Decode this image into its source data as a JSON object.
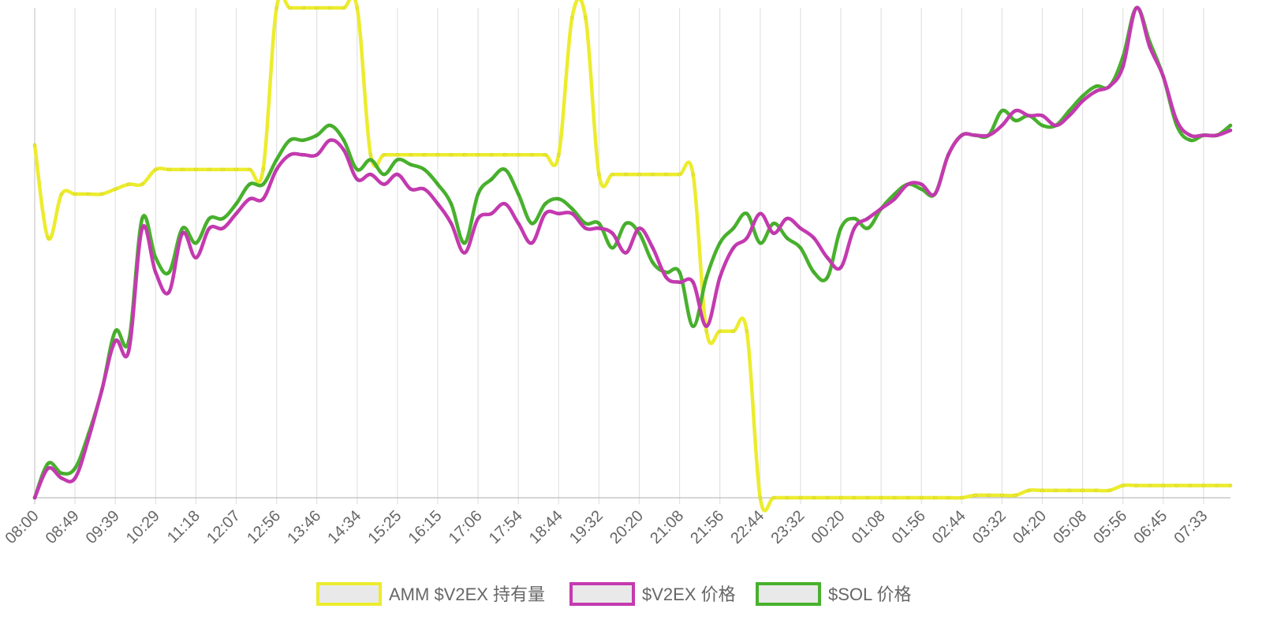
{
  "chart_data": {
    "type": "line",
    "title": "",
    "xlabel": "",
    "ylabel": "",
    "grid": {
      "vertical": true,
      "horizontal": false
    },
    "legend_position": "bottom",
    "x_tick_labels": [
      "08:00",
      "08:49",
      "09:39",
      "10:29",
      "11:18",
      "12:07",
      "12:56",
      "13:46",
      "14:34",
      "15:25",
      "16:15",
      "17:06",
      "17:54",
      "18:44",
      "19:32",
      "20:20",
      "21:08",
      "21:56",
      "22:44",
      "23:32",
      "00:20",
      "01:08",
      "01:56",
      "02:44",
      "03:32",
      "04:20",
      "05:08",
      "05:56",
      "06:45",
      "07:33"
    ],
    "series": [
      {
        "name": "AMM $V2EX 持有量",
        "color": "#ecec2e",
        "values": [
          0.72,
          0.53,
          0.62,
          0.62,
          0.62,
          0.62,
          0.63,
          0.64,
          0.64,
          0.67,
          0.67,
          0.67,
          0.67,
          0.67,
          0.67,
          0.67,
          0.67,
          0.67,
          1.0,
          1.0,
          1.0,
          1.0,
          1.0,
          1.0,
          1.0,
          0.7,
          0.7,
          0.7,
          0.7,
          0.7,
          0.7,
          0.7,
          0.7,
          0.7,
          0.7,
          0.7,
          0.7,
          0.7,
          0.7,
          0.7,
          0.98,
          0.98,
          0.66,
          0.66,
          0.66,
          0.66,
          0.66,
          0.66,
          0.66,
          0.66,
          0.34,
          0.34,
          0.34,
          0.34,
          0.0,
          0.0,
          0.0,
          0.0,
          0.0,
          0.0,
          0.0,
          0.0,
          0.0,
          0.0,
          0.0,
          0.0,
          0.0,
          0.0,
          0.0,
          0.0,
          0.005,
          0.005,
          0.005,
          0.005,
          0.015,
          0.015,
          0.015,
          0.015,
          0.015,
          0.015,
          0.015,
          0.025,
          0.025,
          0.025,
          0.025,
          0.025,
          0.025,
          0.025,
          0.025,
          0.025
        ]
      },
      {
        "name": "$V2EX 价格",
        "color": "#c43ab0",
        "values": [
          0.0,
          0.06,
          0.04,
          0.04,
          0.12,
          0.22,
          0.32,
          0.3,
          0.55,
          0.46,
          0.42,
          0.54,
          0.49,
          0.55,
          0.55,
          0.58,
          0.61,
          0.61,
          0.67,
          0.7,
          0.7,
          0.7,
          0.73,
          0.71,
          0.65,
          0.66,
          0.64,
          0.66,
          0.63,
          0.63,
          0.6,
          0.56,
          0.5,
          0.57,
          0.58,
          0.6,
          0.56,
          0.52,
          0.58,
          0.58,
          0.58,
          0.55,
          0.55,
          0.54,
          0.5,
          0.55,
          0.51,
          0.45,
          0.44,
          0.44,
          0.35,
          0.45,
          0.51,
          0.53,
          0.58,
          0.54,
          0.57,
          0.55,
          0.53,
          0.49,
          0.47,
          0.55,
          0.57,
          0.59,
          0.61,
          0.64,
          0.64,
          0.62,
          0.7,
          0.74,
          0.74,
          0.74,
          0.76,
          0.79,
          0.78,
          0.78,
          0.76,
          0.78,
          0.81,
          0.83,
          0.84,
          0.88,
          1.0,
          0.92,
          0.86,
          0.77,
          0.74,
          0.74,
          0.74,
          0.75
        ]
      },
      {
        "name": "$SOL 价格",
        "color": "#48b12d",
        "values": [
          0.0,
          0.07,
          0.05,
          0.06,
          0.13,
          0.22,
          0.34,
          0.32,
          0.57,
          0.49,
          0.46,
          0.55,
          0.52,
          0.57,
          0.57,
          0.6,
          0.64,
          0.64,
          0.69,
          0.73,
          0.73,
          0.74,
          0.76,
          0.73,
          0.67,
          0.69,
          0.66,
          0.69,
          0.68,
          0.67,
          0.64,
          0.6,
          0.52,
          0.62,
          0.65,
          0.67,
          0.62,
          0.56,
          0.6,
          0.61,
          0.59,
          0.56,
          0.56,
          0.51,
          0.56,
          0.54,
          0.48,
          0.46,
          0.46,
          0.35,
          0.45,
          0.52,
          0.55,
          0.58,
          0.52,
          0.56,
          0.53,
          0.51,
          0.46,
          0.45,
          0.55,
          0.57,
          0.55,
          0.59,
          0.62,
          0.64,
          0.63,
          0.62,
          0.7,
          0.74,
          0.74,
          0.74,
          0.79,
          0.77,
          0.78,
          0.76,
          0.76,
          0.79,
          0.82,
          0.84,
          0.84,
          0.9,
          1.0,
          0.93,
          0.86,
          0.76,
          0.73,
          0.74,
          0.74,
          0.76
        ]
      }
    ]
  }
}
